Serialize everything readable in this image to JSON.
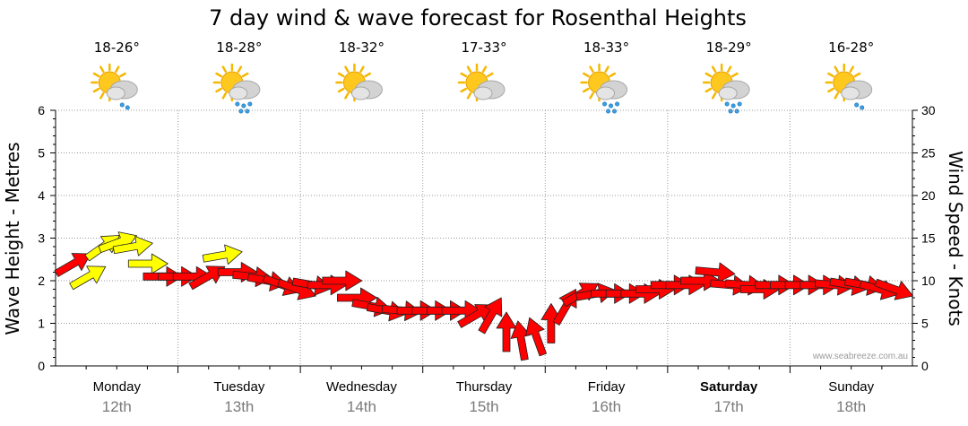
{
  "chart_data": {
    "type": "line",
    "title": "7 day wind & wave forecast for Rosenthal Heights",
    "ylabel_left": "Wave Height - Metres",
    "ylabel_right": "Wind Speed - Knots",
    "ylim_left": [
      0,
      6
    ],
    "ylim_right": [
      0,
      30
    ],
    "yticks_left": [
      "0",
      "1",
      "2",
      "3",
      "4",
      "5",
      "6"
    ],
    "yticks_right": [
      "0",
      "5",
      "10",
      "15",
      "20",
      "25",
      "30"
    ],
    "grid": true,
    "credit": "www.seabreeze.com.au",
    "days": [
      {
        "day": "Monday",
        "date": "12th",
        "temp": "18-26°",
        "icon": "sun-cloud-showers-icon",
        "bold": false
      },
      {
        "day": "Tuesday",
        "date": "13th",
        "temp": "18-28°",
        "icon": "sun-cloud-rain-icon",
        "bold": false
      },
      {
        "day": "Wednesday",
        "date": "14th",
        "temp": "18-32°",
        "icon": "sun-cloud-icon",
        "bold": false
      },
      {
        "day": "Thursday",
        "date": "15th",
        "temp": "17-33°",
        "icon": "sun-cloud-icon",
        "bold": false
      },
      {
        "day": "Friday",
        "date": "16th",
        "temp": "18-33°",
        "icon": "sun-cloud-rain-icon",
        "bold": false
      },
      {
        "day": "Saturday",
        "date": "17th",
        "temp": "18-29°",
        "icon": "sun-cloud-rain-icon",
        "bold": true
      },
      {
        "day": "Sunday",
        "date": "18th",
        "temp": "16-28°",
        "icon": "sun-cloud-showers-icon",
        "bold": false
      }
    ],
    "wind_points_per_day": 8,
    "wind_knots": [
      12,
      10.5,
      14,
      14.5,
      14,
      12,
      10.5,
      10.5,
      10.5,
      10.5,
      13,
      11,
      10.5,
      10,
      9.5,
      9,
      9.5,
      9.5,
      10,
      8,
      7,
      6.5,
      6.5,
      6.5,
      6.5,
      6.5,
      6.5,
      6,
      6,
      4,
      3,
      3.5,
      5,
      7,
      8.5,
      8.5,
      8.5,
      8.5,
      8.5,
      9,
      9.5,
      9.5,
      10,
      11,
      9.5,
      9.5,
      9,
      9.5,
      9.5,
      9.5,
      9.5,
      9.5,
      9.5,
      9.5,
      9,
      9
    ],
    "arrow_rotation_deg": [
      -30,
      -30,
      -35,
      -20,
      -10,
      0,
      0,
      0,
      0,
      -30,
      -10,
      0,
      5,
      10,
      20,
      20,
      10,
      0,
      0,
      0,
      10,
      10,
      5,
      0,
      0,
      0,
      0,
      -30,
      -60,
      -90,
      -100,
      -110,
      -90,
      -60,
      -30,
      -10,
      0,
      0,
      0,
      0,
      0,
      0,
      0,
      5,
      5,
      5,
      0,
      0,
      0,
      0,
      0,
      5,
      10,
      10,
      15,
      20
    ],
    "colors": {
      "strong_wind": "#ff0000",
      "light_wind": "#ffff00",
      "outline": "#222222",
      "grid": "#9a9a9a"
    },
    "light_wind_indices": [
      1,
      2,
      3,
      4,
      5,
      10
    ]
  }
}
